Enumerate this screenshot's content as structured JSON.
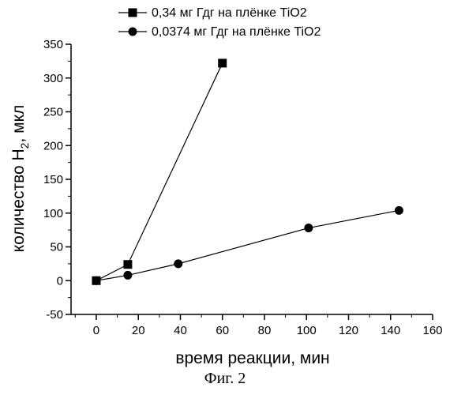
{
  "chart_data": {
    "type": "line",
    "xlabel": "время реакции, мин",
    "ylabel_main": "количество H",
    "ylabel_sub": "2",
    "ylabel_tail": ", мкл",
    "xlim": [
      -12,
      160
    ],
    "ylim": [
      -50,
      350
    ],
    "xticks": [
      0,
      20,
      40,
      60,
      80,
      100,
      120,
      140,
      160
    ],
    "yticks": [
      -50,
      0,
      50,
      100,
      150,
      200,
      250,
      300,
      350
    ],
    "legend_position": "top",
    "series": [
      {
        "name": "0,34 мг Гдг на плёнке TiO2",
        "marker": "square",
        "x": [
          0,
          15,
          60
        ],
        "y": [
          0,
          24,
          322
        ]
      },
      {
        "name": "0,0374 мг Гдг на плёнке TiO2",
        "marker": "circle",
        "x": [
          0,
          15,
          39,
          101,
          144
        ],
        "y": [
          0,
          8,
          25,
          78,
          104
        ]
      }
    ]
  },
  "caption": "Фиг. 2"
}
